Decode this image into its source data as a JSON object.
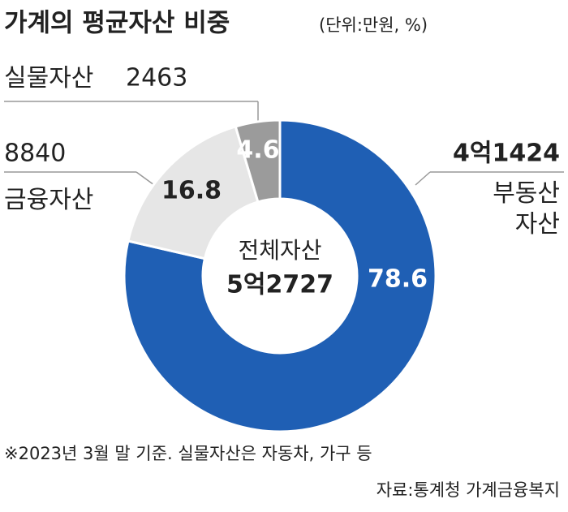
{
  "chart_data": {
    "type": "pie",
    "title": "가계의 평균자산 비중",
    "subtitle": "(단위:만원, %)",
    "categories": [
      "부동산 자산",
      "금융자산",
      "실물자산"
    ],
    "values": [
      78.6,
      16.8,
      4.6
    ],
    "amount_labels": [
      "4억1424",
      "8840",
      "2463"
    ],
    "colors": [
      "#1f5fb4",
      "#e6e6e6",
      "#9b9b9b"
    ],
    "center_label": "전체자산",
    "center_value": "5억2727",
    "footnote": "※2023년 3월 말 기준. 실물자산은 자동차, 가구 등",
    "source": "자료:통계청 가계금융복지"
  }
}
